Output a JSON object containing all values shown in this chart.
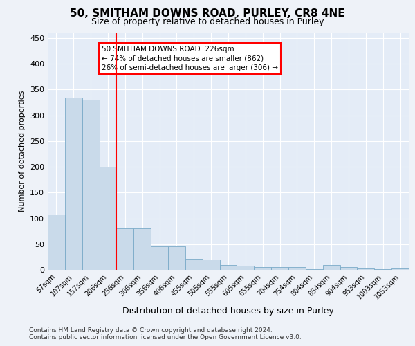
{
  "title_line1": "50, SMITHAM DOWNS ROAD, PURLEY, CR8 4NE",
  "title_line2": "Size of property relative to detached houses in Purley",
  "xlabel": "Distribution of detached houses by size in Purley",
  "ylabel": "Number of detached properties",
  "bin_labels": [
    "57sqm",
    "107sqm",
    "157sqm",
    "206sqm",
    "256sqm",
    "306sqm",
    "356sqm",
    "406sqm",
    "455sqm",
    "505sqm",
    "555sqm",
    "605sqm",
    "655sqm",
    "704sqm",
    "754sqm",
    "804sqm",
    "854sqm",
    "904sqm",
    "953sqm",
    "1003sqm",
    "1053sqm"
  ],
  "bar_values": [
    107,
    335,
    330,
    200,
    80,
    80,
    46,
    46,
    22,
    20,
    10,
    8,
    6,
    6,
    6,
    2,
    10,
    6,
    3,
    1,
    3
  ],
  "bar_color": "#c9daea",
  "bar_edge_color": "#7aaac8",
  "red_line_x": 3.5,
  "annotation_text": "50 SMITHAM DOWNS ROAD: 226sqm\n← 74% of detached houses are smaller (862)\n26% of semi-detached houses are larger (306) →",
  "annotation_box_color": "white",
  "annotation_box_edge_color": "red",
  "ylim": [
    0,
    460
  ],
  "yticks": [
    0,
    50,
    100,
    150,
    200,
    250,
    300,
    350,
    400,
    450
  ],
  "footer_line1": "Contains HM Land Registry data © Crown copyright and database right 2024.",
  "footer_line2": "Contains public sector information licensed under the Open Government Licence v3.0.",
  "bg_color": "#eef2f8",
  "plot_bg_color": "#e4ecf7",
  "grid_color": "#ffffff",
  "title1_fontsize": 11,
  "title2_fontsize": 9,
  "annotation_fontsize": 7.5,
  "ylabel_fontsize": 8,
  "xlabel_fontsize": 9
}
